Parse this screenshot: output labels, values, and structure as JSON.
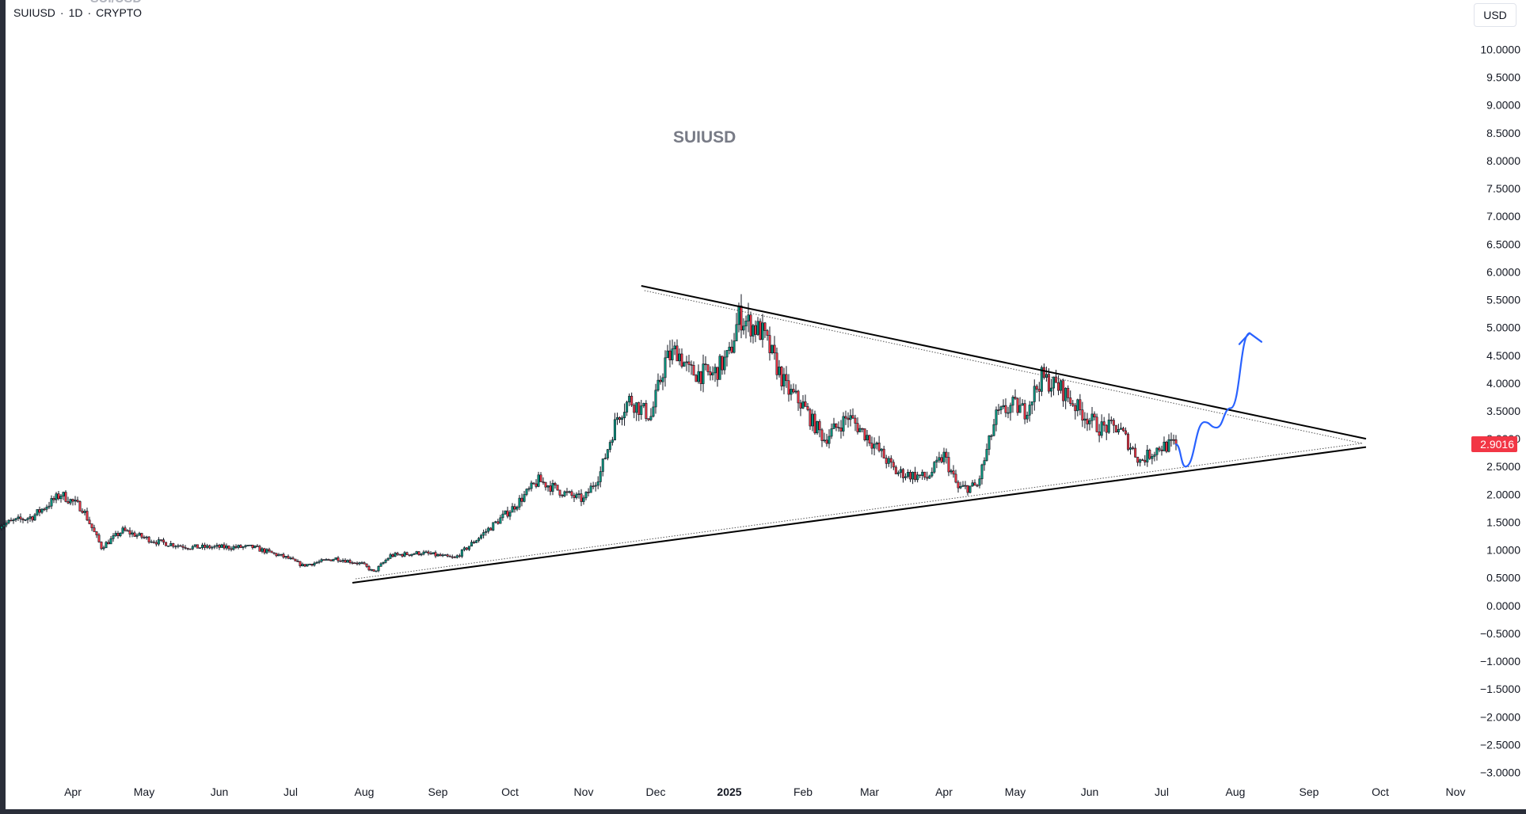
{
  "header": {
    "symbol": "SUIUSD",
    "interval": "1D",
    "exchange": "CRYPTO",
    "separator": "·",
    "clipped_title": "SUI/USD"
  },
  "currency_button": "USD",
  "watermark": "SUIUSD",
  "last_price": {
    "label": "2.9016",
    "value": 2.9016,
    "color": "#f23645"
  },
  "colors": {
    "up_candle": "#089981",
    "down_candle": "#f23645",
    "wick": "#131722",
    "trendline": "#000000",
    "projection": "#2962ff"
  },
  "chart_data": {
    "type": "candlestick",
    "title": "SUIUSD",
    "interval": "1D",
    "ylim": [
      -3.0,
      10.0
    ],
    "price_ticks": [
      "10.0000",
      "9.5000",
      "9.0000",
      "8.5000",
      "8.0000",
      "7.5000",
      "7.0000",
      "6.5000",
      "6.0000",
      "5.5000",
      "5.0000",
      "4.5000",
      "4.0000",
      "3.5000",
      "3.0000",
      "2.5000",
      "2.0000",
      "1.5000",
      "1.0000",
      "0.5000",
      "0.0000",
      "−0.5000",
      "−1.0000",
      "−1.5000",
      "−2.0000",
      "−2.5000",
      "−3.0000"
    ],
    "time_axis": {
      "labels": [
        "Apr",
        "May",
        "Jun",
        "Jul",
        "Aug",
        "Sep",
        "Oct",
        "Nov",
        "Dec",
        "2025",
        "Feb",
        "Mar",
        "Apr",
        "May",
        "Jun",
        "Jul",
        "Aug",
        "Sep",
        "Oct",
        "Nov"
      ],
      "bold": [
        "2025"
      ],
      "dates": [
        "2024-04-01",
        "2024-05-01",
        "2024-06-01",
        "2024-07-01",
        "2024-08-01",
        "2024-09-01",
        "2024-10-01",
        "2024-11-01",
        "2024-12-01",
        "2025-01-01",
        "2025-02-01",
        "2025-03-01",
        "2025-04-01",
        "2025-05-01",
        "2025-06-01",
        "2025-07-01",
        "2025-08-01",
        "2025-09-01",
        "2025-10-01",
        "2025-11-01"
      ]
    },
    "price_path": [
      [
        "2024-03-01",
        1.45
      ],
      [
        "2024-03-15",
        1.6
      ],
      [
        "2024-03-27",
        2.0
      ],
      [
        "2024-04-05",
        1.75
      ],
      [
        "2024-04-13",
        1.05
      ],
      [
        "2024-04-22",
        1.35
      ],
      [
        "2024-05-06",
        1.15
      ],
      [
        "2024-05-20",
        1.05
      ],
      [
        "2024-06-01",
        1.05
      ],
      [
        "2024-06-15",
        1.05
      ],
      [
        "2024-06-30",
        0.85
      ],
      [
        "2024-07-06",
        0.72
      ],
      [
        "2024-07-20",
        0.85
      ],
      [
        "2024-07-31",
        0.75
      ],
      [
        "2024-08-05",
        0.6
      ],
      [
        "2024-08-12",
        0.9
      ],
      [
        "2024-08-25",
        0.95
      ],
      [
        "2024-09-08",
        0.85
      ],
      [
        "2024-09-20",
        1.3
      ],
      [
        "2024-10-02",
        1.75
      ],
      [
        "2024-10-13",
        2.25
      ],
      [
        "2024-10-25",
        2.0
      ],
      [
        "2024-11-01",
        1.9
      ],
      [
        "2024-11-08",
        2.4
      ],
      [
        "2024-11-15",
        3.4
      ],
      [
        "2024-11-20",
        3.7
      ],
      [
        "2024-11-29",
        3.4
      ],
      [
        "2024-12-05",
        4.4
      ],
      [
        "2024-12-10",
        4.6
      ],
      [
        "2024-12-15",
        4.2
      ],
      [
        "2024-12-25",
        4.15
      ],
      [
        "2025-01-01",
        4.5
      ],
      [
        "2025-01-05",
        5.2
      ],
      [
        "2025-01-15",
        4.9
      ],
      [
        "2025-01-25",
        3.9
      ],
      [
        "2025-02-01",
        3.6
      ],
      [
        "2025-02-05",
        3.3
      ],
      [
        "2025-02-10",
        3.0
      ],
      [
        "2025-02-20",
        3.4
      ],
      [
        "2025-03-01",
        3.0
      ],
      [
        "2025-03-12",
        2.4
      ],
      [
        "2025-03-25",
        2.3
      ],
      [
        "2025-04-01",
        2.7
      ],
      [
        "2025-04-07",
        2.1
      ],
      [
        "2025-04-15",
        2.15
      ],
      [
        "2025-04-23",
        3.4
      ],
      [
        "2025-04-30",
        3.6
      ],
      [
        "2025-05-05",
        3.5
      ],
      [
        "2025-05-12",
        4.1
      ],
      [
        "2025-05-20",
        3.9
      ],
      [
        "2025-05-28",
        3.5
      ],
      [
        "2025-06-05",
        3.2
      ],
      [
        "2025-06-13",
        3.2
      ],
      [
        "2025-06-22",
        2.6
      ],
      [
        "2025-06-30",
        2.85
      ],
      [
        "2025-07-07",
        2.9016
      ]
    ],
    "trendlines": [
      {
        "name": "resistance",
        "from": [
          "2024-11-25",
          5.75
        ],
        "to": [
          "2025-09-25",
          3.0
        ]
      },
      {
        "name": "support",
        "from": [
          "2024-07-27",
          0.41
        ],
        "to": [
          "2025-09-25",
          2.85
        ]
      }
    ],
    "projection": [
      [
        "2025-07-07",
        2.9
      ],
      [
        "2025-07-11",
        2.5
      ],
      [
        "2025-07-19",
        3.3
      ],
      [
        "2025-07-24",
        3.2
      ],
      [
        "2025-07-30",
        3.55
      ],
      [
        "2025-08-07",
        4.9
      ]
    ],
    "grid": false,
    "legend": "none"
  }
}
